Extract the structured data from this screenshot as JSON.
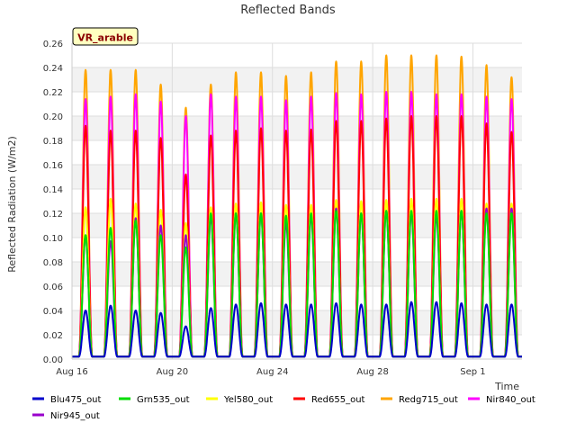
{
  "chart_data": {
    "type": "line",
    "title": "Reflected Bands",
    "xlabel": "Time",
    "ylabel": "Reflected Radiation (W/m2)",
    "site_label": "VR_arable",
    "xlim": [
      "2024-08-16",
      "2024-09-02T23:00"
    ],
    "ylim": [
      0,
      0.26
    ],
    "yticks": [
      0.0,
      0.02,
      0.04,
      0.06,
      0.08,
      0.1,
      0.12,
      0.14,
      0.16,
      0.18,
      0.2,
      0.22,
      0.24,
      0.26
    ],
    "ytick_labels": [
      "0.00",
      "0.02",
      "0.04",
      "0.06",
      "0.08",
      "0.10",
      "0.12",
      "0.14",
      "0.16",
      "0.18",
      "0.20",
      "0.22",
      "0.24",
      "0.26"
    ],
    "xticks": [
      "2024-08-16",
      "2024-08-20",
      "2024-08-24",
      "2024-08-28",
      "2024-09-01"
    ],
    "xtick_labels": [
      "Aug 16",
      "Aug 20",
      "Aug 24",
      "Aug 28",
      "Sep 1"
    ],
    "grid": true,
    "legend_position": "bottom",
    "days": [
      "2024-08-16",
      "2024-08-17",
      "2024-08-18",
      "2024-08-19",
      "2024-08-20",
      "2024-08-21",
      "2024-08-22",
      "2024-08-23",
      "2024-08-24",
      "2024-08-25",
      "2024-08-26",
      "2024-08-27",
      "2024-08-28",
      "2024-08-29",
      "2024-08-30",
      "2024-08-31",
      "2024-09-01",
      "2024-09-02"
    ],
    "series": [
      {
        "name": "Blu475_out",
        "color": "#0000cc",
        "daily_peak": [
          0.038,
          0.042,
          0.038,
          0.036,
          0.025,
          0.04,
          0.043,
          0.044,
          0.043,
          0.043,
          0.044,
          0.043,
          0.043,
          0.045,
          0.045,
          0.044,
          0.043,
          0.043
        ]
      },
      {
        "name": "Grn535_out",
        "color": "#00dd00",
        "daily_peak": [
          0.1,
          0.106,
          0.112,
          0.1,
          0.09,
          0.118,
          0.118,
          0.118,
          0.116,
          0.118,
          0.12,
          0.118,
          0.12,
          0.12,
          0.12,
          0.12,
          0.118,
          0.118
        ]
      },
      {
        "name": "Yel580_out",
        "color": "#ffff00",
        "daily_peak": [
          0.123,
          0.13,
          0.126,
          0.121,
          0.11,
          0.123,
          0.126,
          0.127,
          0.125,
          0.125,
          0.129,
          0.128,
          0.129,
          0.13,
          0.13,
          0.13,
          0.126,
          0.126
        ]
      },
      {
        "name": "Red655_out",
        "color": "#ff0000",
        "daily_peak": [
          0.19,
          0.186,
          0.186,
          0.18,
          0.15,
          0.182,
          0.186,
          0.188,
          0.186,
          0.187,
          0.194,
          0.194,
          0.196,
          0.198,
          0.198,
          0.198,
          0.192,
          0.185
        ]
      },
      {
        "name": "Redg715_out",
        "color": "#ffa500",
        "daily_peak": [
          0.236,
          0.236,
          0.236,
          0.224,
          0.205,
          0.224,
          0.234,
          0.234,
          0.231,
          0.234,
          0.243,
          0.243,
          0.248,
          0.248,
          0.248,
          0.247,
          0.24,
          0.23
        ]
      },
      {
        "name": "Nir840_out",
        "color": "#ff00ff",
        "daily_peak": [
          0.212,
          0.214,
          0.216,
          0.21,
          0.198,
          0.216,
          0.214,
          0.214,
          0.211,
          0.214,
          0.217,
          0.216,
          0.218,
          0.218,
          0.216,
          0.216,
          0.214,
          0.212
        ]
      },
      {
        "name": "Nir945_out",
        "color": "#9900cc",
        "daily_peak": [
          0.1,
          0.095,
          0.114,
          0.108,
          0.1,
          0.115,
          0.118,
          0.118,
          0.11,
          0.116,
          0.122,
          0.118,
          0.12,
          0.118,
          0.116,
          0.12,
          0.122,
          0.122
        ]
      }
    ]
  }
}
